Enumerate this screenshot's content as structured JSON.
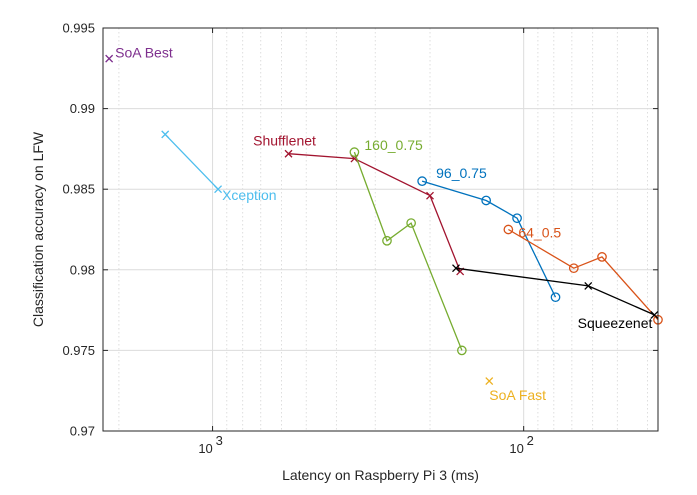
{
  "chart_data": {
    "type": "line",
    "xlabel": "Latency on Raspberry Pi 3 (ms)",
    "ylabel": "Classification accuracy on LFW",
    "xscale": "log-reversed",
    "xlim": [
      2250,
      37
    ],
    "ylim": [
      0.97,
      0.995
    ],
    "y_ticks": [
      "0.97",
      "0.975",
      "0.98",
      "0.985",
      "0.99",
      "0.995"
    ],
    "x_ticks": [
      {
        "value": 1000,
        "label": "10",
        "exp": "3"
      },
      {
        "value": 100,
        "label": "10",
        "exp": "2"
      }
    ],
    "grid": true,
    "series": [
      {
        "name": "SoA Best",
        "color": "#7E2F8E",
        "marker": "x",
        "x": [
          2150
        ],
        "y": [
          0.9931
        ]
      },
      {
        "name": "Xception",
        "color": "#4DBEEE",
        "marker": "x",
        "x": [
          1420,
          960
        ],
        "y": [
          0.9884,
          0.985
        ]
      },
      {
        "name": "Shufflenet",
        "color": "#A2142F",
        "marker": "x",
        "x": [
          570,
          350,
          200,
          160
        ],
        "y": [
          0.9872,
          0.9869,
          0.9846,
          0.9799
        ]
      },
      {
        "name": "160_0.75",
        "color": "#77AC30",
        "marker": "o",
        "x": [
          350,
          275,
          230,
          158
        ],
        "y": [
          0.9873,
          0.9818,
          0.9829,
          0.975
        ]
      },
      {
        "name": "96_0.75",
        "color": "#0072BD",
        "marker": "o",
        "x": [
          212,
          132,
          105,
          79
        ],
        "y": [
          0.9855,
          0.9843,
          0.9832,
          0.9783
        ]
      },
      {
        "name": "64_0.5",
        "color": "#D95319",
        "marker": "o",
        "x": [
          112,
          69,
          56,
          37
        ],
        "y": [
          0.9825,
          0.9801,
          0.9808,
          0.9769
        ]
      },
      {
        "name": "Squeezenet",
        "color": "#000000",
        "marker": "x",
        "x": [
          165,
          62,
          38
        ],
        "y": [
          0.9801,
          0.979,
          0.9772
        ]
      },
      {
        "name": "SoA Fast",
        "color": "#EDB120",
        "marker": "x",
        "x": [
          129
        ],
        "y": [
          0.9731
        ]
      }
    ]
  }
}
